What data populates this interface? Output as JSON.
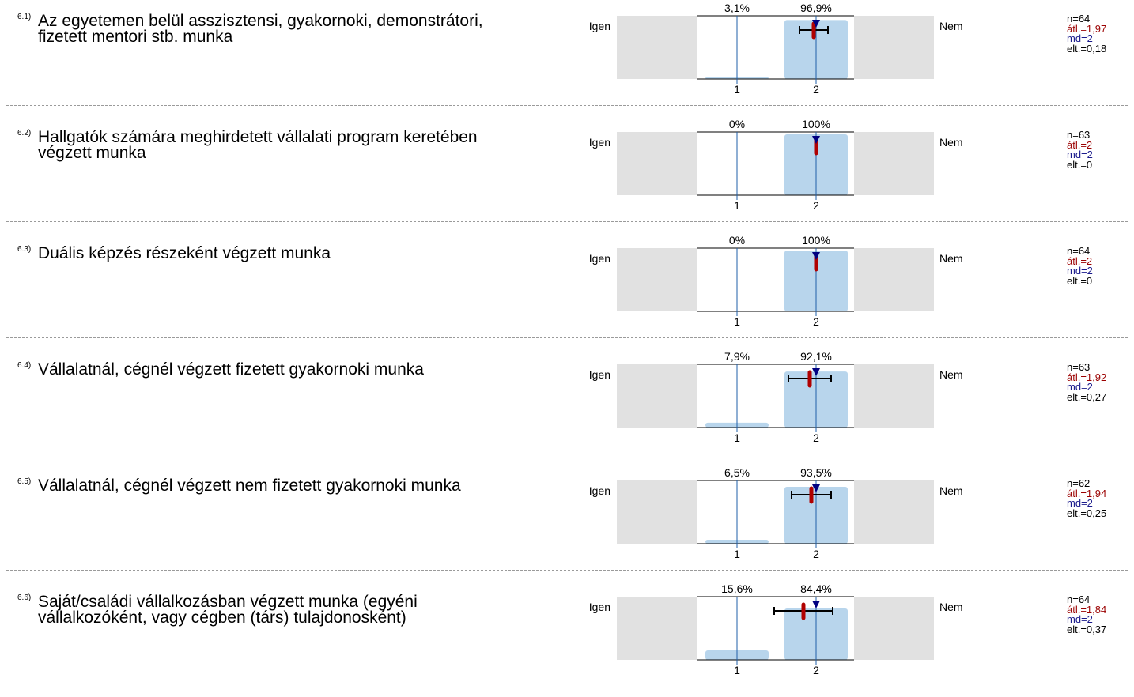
{
  "chart_data": {
    "type": "bar",
    "categories": [
      "1",
      "2"
    ],
    "scale_left_label": "Igen",
    "scale_right_label": "Nem",
    "colors": {
      "bar": "#b8d5ec",
      "side_box": "#e1e1e1",
      "mean_marker": "#b00000",
      "median_marker": "#000080",
      "axis_line": "#1f5fa8"
    },
    "items": [
      {
        "num": "6.1)",
        "text": "Az egyetemen belül asszisztensi, gyakornoki, demonstrátori, fizetett mentori stb. munka",
        "percent_labels": [
          "3,1%",
          "96,9%"
        ],
        "values": [
          3.1,
          96.9
        ],
        "n": "n=64",
        "mean_label": "átl.=1,97",
        "median_label": "md=2",
        "sd_label": "elt.=0,18",
        "mean": 1.97,
        "median": 2,
        "sd": 0.18
      },
      {
        "num": "6.2)",
        "text": "Hallgatók számára meghirdetett vállalati program keretében végzett munka",
        "percent_labels": [
          "0%",
          "100%"
        ],
        "values": [
          0,
          100
        ],
        "n": "n=63",
        "mean_label": "átl.=2",
        "median_label": "md=2",
        "sd_label": "elt.=0",
        "mean": 2,
        "median": 2,
        "sd": 0
      },
      {
        "num": "6.3)",
        "text": "Duális képzés részeként végzett munka",
        "percent_labels": [
          "0%",
          "100%"
        ],
        "values": [
          0,
          100
        ],
        "n": "n=64",
        "mean_label": "átl.=2",
        "median_label": "md=2",
        "sd_label": "elt.=0",
        "mean": 2,
        "median": 2,
        "sd": 0
      },
      {
        "num": "6.4)",
        "text": "Vállalatnál, cégnél végzett fizetett gyakornoki munka",
        "percent_labels": [
          "7,9%",
          "92,1%"
        ],
        "values": [
          7.9,
          92.1
        ],
        "n": "n=63",
        "mean_label": "átl.=1,92",
        "median_label": "md=2",
        "sd_label": "elt.=0,27",
        "mean": 1.92,
        "median": 2,
        "sd": 0.27
      },
      {
        "num": "6.5)",
        "text": "Vállalatnál, cégnél végzett nem fizetett gyakornoki munka",
        "percent_labels": [
          "6,5%",
          "93,5%"
        ],
        "values": [
          6.5,
          93.5
        ],
        "n": "n=62",
        "mean_label": "átl.=1,94",
        "median_label": "md=2",
        "sd_label": "elt.=0,25",
        "mean": 1.94,
        "median": 2,
        "sd": 0.25
      },
      {
        "num": "6.6)",
        "text": "Saját/családi vállalkozásban végzett munka (egyéni vállalkozóként, vagy cégben (társ) tulajdonosként)",
        "percent_labels": [
          "15,6%",
          "84,4%"
        ],
        "values": [
          15.6,
          84.4
        ],
        "n": "n=64",
        "mean_label": "átl.=1,84",
        "median_label": "md=2",
        "sd_label": "elt.=0,37",
        "mean": 1.84,
        "median": 2,
        "sd": 0.37
      }
    ]
  }
}
